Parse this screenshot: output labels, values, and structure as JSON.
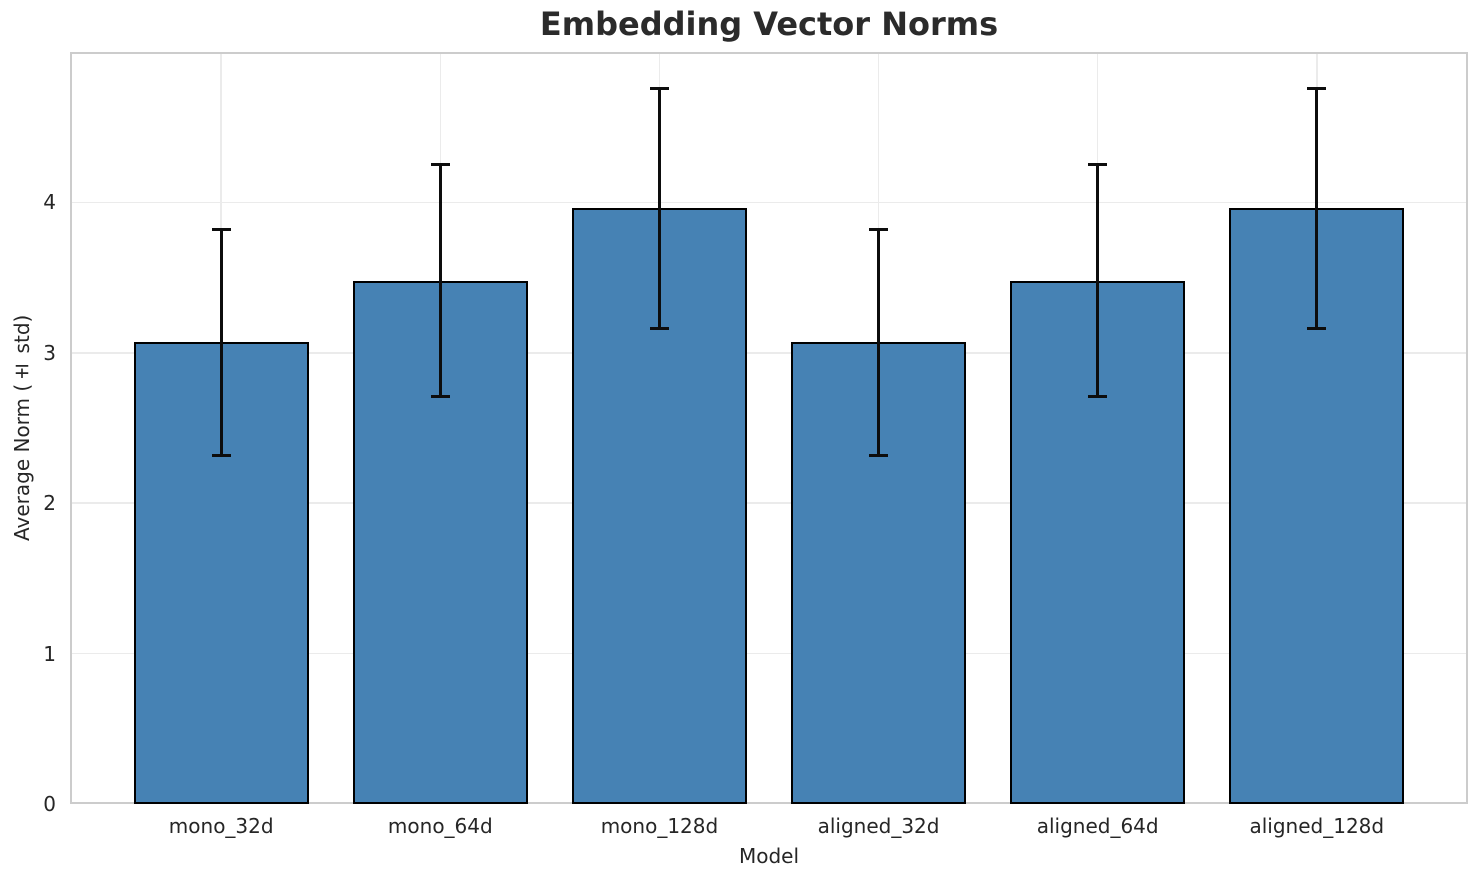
{
  "chart_data": {
    "type": "bar",
    "title": "Embedding Vector Norms",
    "xlabel": "Model",
    "ylabel": "Average Norm (± std)",
    "categories": [
      "mono_32d",
      "mono_64d",
      "mono_128d",
      "aligned_32d",
      "aligned_64d",
      "aligned_128d"
    ],
    "values": [
      3.07,
      3.48,
      3.96,
      3.07,
      3.48,
      3.96
    ],
    "errors": [
      0.75,
      0.77,
      0.8,
      0.75,
      0.77,
      0.8
    ],
    "error_type": "std",
    "ylim": [
      0,
      5.0
    ],
    "yticks": [
      0,
      1,
      2,
      3,
      4
    ],
    "xlim": [
      -0.69,
      5.69
    ],
    "bar_width": 0.8,
    "grid": true,
    "legend": false,
    "colors": {
      "bar_fill": "#4682b4",
      "bar_edge": "#000000",
      "error_bar": "#0d0d0d",
      "grid_line": "#ebebeb",
      "spine": "#cccccc",
      "title_text": "#2b2b2b",
      "tick_text": "#262626",
      "background": "#ffffff"
    }
  }
}
